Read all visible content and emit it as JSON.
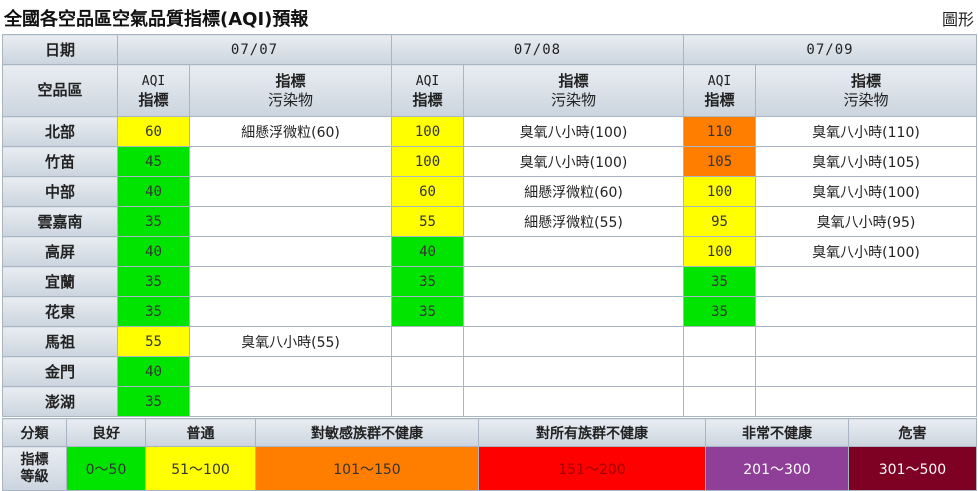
{
  "header": {
    "title": "全國各空品區空氣品質指標(AQI)預報",
    "chart_link": "圖形"
  },
  "table": {
    "date_label": "日期",
    "region_label": "空品區",
    "dates": [
      "07/07",
      "07/08",
      "07/09"
    ],
    "aqi_header": [
      "AQI",
      "指標"
    ],
    "pollutant_header": [
      "指標",
      "污染物"
    ],
    "colors": {
      "good": "#00e400",
      "moderate": "#ffff00",
      "usg": "#ff7e00"
    },
    "rows": [
      {
        "region": "北部",
        "cells": [
          {
            "aqi": "60",
            "level": "moderate",
            "pollutant": "細懸浮微粒(60)"
          },
          {
            "aqi": "100",
            "level": "moderate",
            "pollutant": "臭氧八小時(100)"
          },
          {
            "aqi": "110",
            "level": "usg",
            "pollutant": "臭氧八小時(110)"
          }
        ]
      },
      {
        "region": "竹苗",
        "cells": [
          {
            "aqi": "45",
            "level": "good",
            "pollutant": ""
          },
          {
            "aqi": "100",
            "level": "moderate",
            "pollutant": "臭氧八小時(100)"
          },
          {
            "aqi": "105",
            "level": "usg",
            "pollutant": "臭氧八小時(105)"
          }
        ]
      },
      {
        "region": "中部",
        "cells": [
          {
            "aqi": "40",
            "level": "good",
            "pollutant": ""
          },
          {
            "aqi": "60",
            "level": "moderate",
            "pollutant": "細懸浮微粒(60)"
          },
          {
            "aqi": "100",
            "level": "moderate",
            "pollutant": "臭氧八小時(100)"
          }
        ]
      },
      {
        "region": "雲嘉南",
        "cells": [
          {
            "aqi": "35",
            "level": "good",
            "pollutant": ""
          },
          {
            "aqi": "55",
            "level": "moderate",
            "pollutant": "細懸浮微粒(55)"
          },
          {
            "aqi": "95",
            "level": "moderate",
            "pollutant": "臭氧八小時(95)"
          }
        ]
      },
      {
        "region": "高屏",
        "cells": [
          {
            "aqi": "40",
            "level": "good",
            "pollutant": ""
          },
          {
            "aqi": "40",
            "level": "good",
            "pollutant": ""
          },
          {
            "aqi": "100",
            "level": "moderate",
            "pollutant": "臭氧八小時(100)"
          }
        ]
      },
      {
        "region": "宜蘭",
        "cells": [
          {
            "aqi": "35",
            "level": "good",
            "pollutant": ""
          },
          {
            "aqi": "35",
            "level": "good",
            "pollutant": ""
          },
          {
            "aqi": "35",
            "level": "good",
            "pollutant": ""
          }
        ]
      },
      {
        "region": "花東",
        "cells": [
          {
            "aqi": "35",
            "level": "good",
            "pollutant": ""
          },
          {
            "aqi": "35",
            "level": "good",
            "pollutant": ""
          },
          {
            "aqi": "35",
            "level": "good",
            "pollutant": ""
          }
        ]
      },
      {
        "region": "馬祖",
        "cells": [
          {
            "aqi": "55",
            "level": "moderate",
            "pollutant": "臭氧八小時(55)"
          },
          {
            "aqi": "",
            "level": "",
            "pollutant": ""
          },
          {
            "aqi": "",
            "level": "",
            "pollutant": ""
          }
        ]
      },
      {
        "region": "金門",
        "cells": [
          {
            "aqi": "40",
            "level": "good",
            "pollutant": ""
          },
          {
            "aqi": "",
            "level": "",
            "pollutant": ""
          },
          {
            "aqi": "",
            "level": "",
            "pollutant": ""
          }
        ]
      },
      {
        "region": "澎湖",
        "cells": [
          {
            "aqi": "35",
            "level": "good",
            "pollutant": ""
          },
          {
            "aqi": "",
            "level": "",
            "pollutant": ""
          },
          {
            "aqi": "",
            "level": "",
            "pollutant": ""
          }
        ]
      }
    ]
  },
  "legend": {
    "category_label": "分類",
    "index_label": [
      "指標",
      "等級"
    ],
    "levels": [
      {
        "name": "良好",
        "range": "0～50",
        "color": "#00e400",
        "text_color": "#333333"
      },
      {
        "name": "普通",
        "range": "51～100",
        "color": "#ffff00",
        "text_color": "#333333"
      },
      {
        "name": "對敏感族群不健康",
        "range": "101～150",
        "color": "#ff7e00",
        "text_color": "#333333"
      },
      {
        "name": "對所有族群不健康",
        "range": "151～200",
        "color": "#ff0000",
        "text_color": "#a00000"
      },
      {
        "name": "非常不健康",
        "range": "201～300",
        "color": "#8f3f97",
        "text_color": "#ffffff"
      },
      {
        "name": "危害",
        "range": "301～500",
        "color": "#7e0023",
        "text_color": "#ffffff"
      }
    ]
  }
}
